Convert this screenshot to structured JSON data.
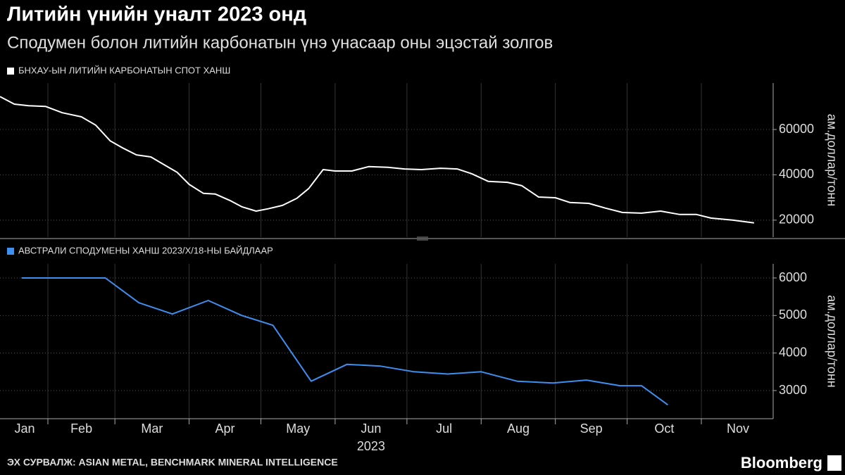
{
  "title": "Литийн үнийн уналт 2023 онд",
  "subtitle": "Сподумен болон литийн карбонатын үнэ унасаар оны эцэстай золгов",
  "x_axis": {
    "xlim": [
      "2023-01-12",
      "2023-12-01"
    ],
    "xticks": [
      {
        "value": "2023-01-01",
        "label": "Jan"
      },
      {
        "value": "2023-02-01",
        "label": "Feb"
      },
      {
        "value": "2023-03-01",
        "label": "Mar"
      },
      {
        "value": "2023-04-01",
        "label": "Apr"
      },
      {
        "value": "2023-05-01",
        "label": "May"
      },
      {
        "value": "2023-06-01",
        "label": "Jun"
      },
      {
        "value": "2023-07-01",
        "label": "Jul"
      },
      {
        "value": "2023-08-01",
        "label": "Aug"
      },
      {
        "value": "2023-09-01",
        "label": "Sep"
      },
      {
        "value": "2023-10-01",
        "label": "Oct"
      },
      {
        "value": "2023-11-01",
        "label": "Nov"
      }
    ],
    "year_label": "2023"
  },
  "chart_data": [
    {
      "type": "line",
      "y_label": "ам.доллар/тонн",
      "x": [
        "2023-01-12",
        "2023-01-18",
        "2023-01-24",
        "2023-01-31",
        "2023-02-07",
        "2023-02-15",
        "2023-02-21",
        "2023-02-27",
        "2023-03-04",
        "2023-03-10",
        "2023-03-16",
        "2023-03-21",
        "2023-03-27",
        "2023-04-01",
        "2023-04-07",
        "2023-04-12",
        "2023-04-18",
        "2023-04-23",
        "2023-04-29",
        "2023-05-04",
        "2023-05-10",
        "2023-05-16",
        "2023-05-21",
        "2023-05-27",
        "2023-06-01",
        "2023-06-08",
        "2023-06-15",
        "2023-06-23",
        "2023-06-30",
        "2023-07-07",
        "2023-07-15",
        "2023-07-22",
        "2023-07-28",
        "2023-08-04",
        "2023-08-12",
        "2023-08-18",
        "2023-08-25",
        "2023-09-01",
        "2023-09-07",
        "2023-09-15",
        "2023-09-22",
        "2023-09-29",
        "2023-10-07",
        "2023-10-15",
        "2023-10-23",
        "2023-10-30",
        "2023-11-05",
        "2023-11-14",
        "2023-11-23"
      ],
      "series": [
        {
          "name": "БНХАУ-ЫН ЛИТИЙН КАРБОНАТЫН СПОТ ХАНШ",
          "color": "#ffffff",
          "values": [
            74500,
            71200,
            70500,
            70200,
            67400,
            65600,
            61900,
            55000,
            52000,
            48800,
            47900,
            44800,
            41100,
            35800,
            31800,
            31500,
            28700,
            25900,
            24000,
            25000,
            26500,
            29600,
            34000,
            42300,
            41700,
            41700,
            43600,
            43300,
            42600,
            42300,
            42900,
            42600,
            40500,
            37100,
            36700,
            35200,
            30200,
            29900,
            27800,
            27400,
            25300,
            23400,
            23100,
            24000,
            22500,
            22500,
            20900,
            20000,
            18800
          ]
        }
      ],
      "ylim": [
        12500,
        80500
      ],
      "yticks": [
        20000,
        40000,
        60000
      ],
      "grid": true
    },
    {
      "type": "line",
      "y_label": "ам.доллар/тонн",
      "x": [
        "2023-01-21",
        "2023-02-25",
        "2023-03-11",
        "2023-03-25",
        "2023-04-09",
        "2023-04-23",
        "2023-05-06",
        "2023-05-22",
        "2023-06-06",
        "2023-06-20",
        "2023-07-04",
        "2023-07-18",
        "2023-08-01",
        "2023-08-16",
        "2023-08-31",
        "2023-09-14",
        "2023-09-28",
        "2023-10-07",
        "2023-10-18"
      ],
      "series": [
        {
          "name": "АВСТРАЛИ СПОДУМЕНЫ ХАНШ 2023/Х/18-НЫ БАЙДЛААР",
          "color": "#3d8ff0",
          "values": [
            6000,
            6000,
            5340,
            5040,
            5400,
            5000,
            4740,
            3250,
            3700,
            3650,
            3500,
            3440,
            3500,
            3250,
            3200,
            3280,
            3130,
            3130,
            2620
          ]
        }
      ],
      "ylim": [
        2250,
        6375
      ],
      "yticks": [
        3000,
        4000,
        5000,
        6000
      ],
      "grid": true
    }
  ],
  "source": "ЭХ СУРВАЛЖ: ASIAN METAL, BENCHMARK MINERAL INTELLIGENCE",
  "brand": "Bloomberg"
}
